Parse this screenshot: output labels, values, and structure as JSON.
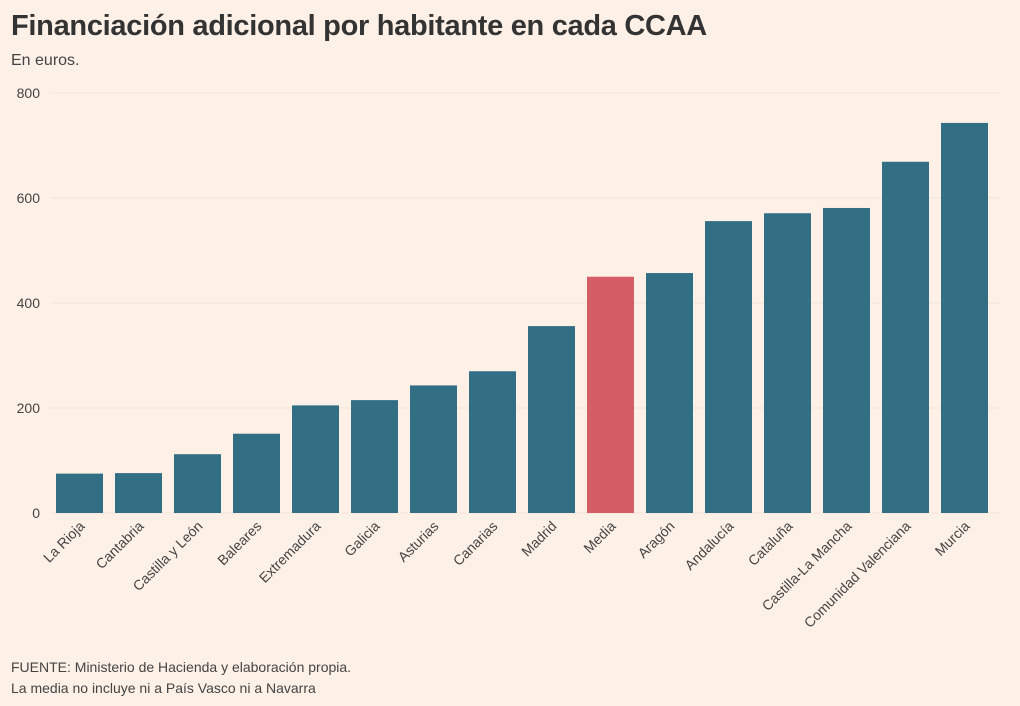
{
  "chart_data": {
    "type": "bar",
    "title": "Financiación adicional por habitante en cada CCAA",
    "subtitle": "En euros.",
    "categories": [
      "La Rioja",
      "Cantabria",
      "Castilla y León",
      "Baleares",
      "Extremadura",
      "Galicia",
      "Asturias",
      "Canarias",
      "Madrid",
      "Media",
      "Aragón",
      "Andalucía",
      "Cataluña",
      "Castilla-La Mancha",
      "Comunidad Valenciana",
      "Murcia"
    ],
    "values": [
      75,
      76,
      112,
      151,
      205,
      215,
      243,
      270,
      356,
      450,
      457,
      556,
      571,
      581,
      669,
      743
    ],
    "highlight": "Media",
    "colors": {
      "bar": "#326e84",
      "highlight": "#d55e66"
    },
    "ylim": [
      0,
      800
    ],
    "yticks": [
      0,
      200,
      400,
      600,
      800
    ],
    "grid": true
  },
  "footer": {
    "source": "FUENTE: Ministerio de Hacienda y elaboración propia.",
    "note": "La media no incluye ni a País Vasco ni a Navarra"
  }
}
